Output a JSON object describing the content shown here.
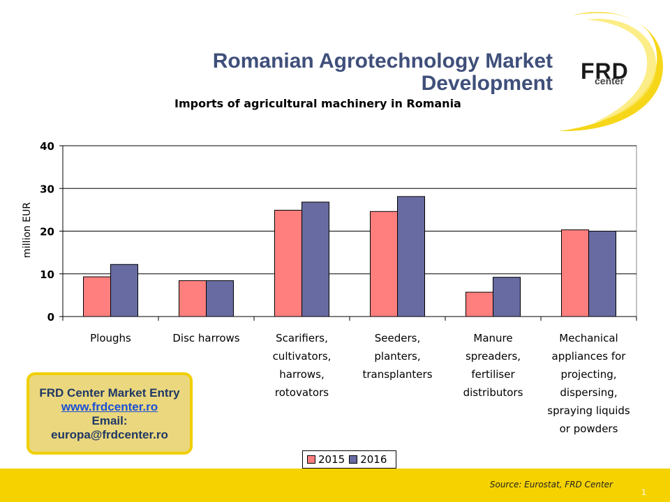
{
  "slide": {
    "title_line1": "Romanian Agrotechnology Market",
    "title_line2": "Development",
    "subtitle": "Imports of agricultural machinery in Romania",
    "logo_main": "FRD",
    "logo_sub": "center",
    "info_line1": "FRD Center Market Entry",
    "info_link": "www.frdcenter.ro",
    "info_line3": "Email:",
    "info_line4": "europa@frdcenter.ro",
    "source": "Source: Eurostat, FRD Center",
    "page_number": "1"
  },
  "colors": {
    "series_2015": "#ff7f7f",
    "series_2016": "#676ba1",
    "accent_yellow": "#f5d200"
  },
  "chart_data": {
    "type": "bar",
    "title": "Imports of agricultural machinery in Romania",
    "ylabel": "million EUR",
    "xlabel": "",
    "ylim": [
      0,
      40
    ],
    "yticks": [
      0,
      10,
      20,
      30,
      40
    ],
    "grid": true,
    "legend": "bottom",
    "categories": [
      [
        "Ploughs"
      ],
      [
        "Disc harrows"
      ],
      [
        "Scarifiers,",
        "cultivators,",
        "harrows,",
        "rotovators"
      ],
      [
        "Seeders,",
        "planters,",
        "transplanters"
      ],
      [
        "Manure",
        "spreaders,",
        "fertiliser",
        "distributors"
      ],
      [
        "Mechanical",
        "appliances for",
        "projecting,",
        "dispersing,",
        "spraying liquids",
        "or powders"
      ]
    ],
    "series": [
      {
        "name": "2015",
        "values": [
          9.3,
          8.4,
          24.9,
          24.6,
          5.7,
          20.3
        ]
      },
      {
        "name": "2016",
        "values": [
          12.2,
          8.4,
          26.8,
          28.1,
          9.2,
          20.0
        ]
      }
    ]
  }
}
